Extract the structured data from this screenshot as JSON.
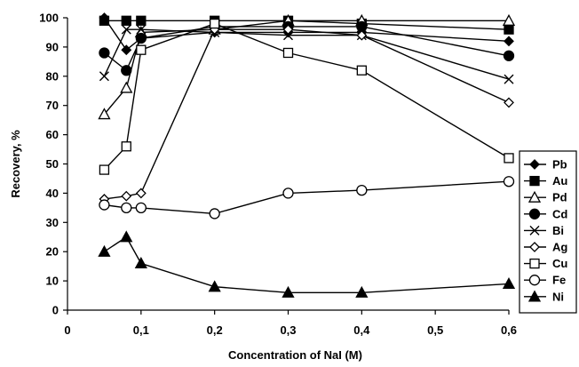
{
  "chart_data": {
    "type": "line",
    "xlabel": "Concentration of  NaI (M)",
    "ylabel": "Recovery, %",
    "xlim": [
      0,
      0.6
    ],
    "ylim": [
      0,
      100
    ],
    "x_ticks": [
      0,
      0.1,
      0.2,
      0.3,
      0.4,
      0.5,
      0.6
    ],
    "x_tick_labels": [
      "0",
      "0,1",
      "0,2",
      "0,3",
      "0,4",
      "0,5",
      "0,6"
    ],
    "y_ticks": [
      0,
      10,
      20,
      30,
      40,
      50,
      60,
      70,
      80,
      90,
      100
    ],
    "y_tick_labels": [
      "0",
      "10",
      "20",
      "30",
      "40",
      "50",
      "60",
      "70",
      "80",
      "90",
      "100"
    ],
    "grid": false,
    "legend_position": "right",
    "series": [
      {
        "name": "Pb",
        "marker": "filled-diamond",
        "points": [
          [
            0.05,
            100
          ],
          [
            0.08,
            89
          ],
          [
            0.1,
            93
          ],
          [
            0.2,
            95
          ],
          [
            0.3,
            95
          ],
          [
            0.4,
            95
          ],
          [
            0.6,
            92
          ]
        ]
      },
      {
        "name": "Au",
        "marker": "filled-square",
        "points": [
          [
            0.05,
            99
          ],
          [
            0.08,
            99
          ],
          [
            0.1,
            99
          ],
          [
            0.2,
            99
          ],
          [
            0.3,
            99
          ],
          [
            0.4,
            98
          ],
          [
            0.6,
            96
          ]
        ]
      },
      {
        "name": "Pd",
        "marker": "open-triangle",
        "points": [
          [
            0.05,
            67
          ],
          [
            0.08,
            76
          ],
          [
            0.1,
            95
          ],
          [
            0.2,
            96
          ],
          [
            0.3,
            99
          ],
          [
            0.4,
            99
          ],
          [
            0.6,
            99
          ]
        ]
      },
      {
        "name": "Cd",
        "marker": "filled-circle",
        "points": [
          [
            0.05,
            88
          ],
          [
            0.08,
            82
          ],
          [
            0.1,
            93
          ],
          [
            0.2,
            97
          ],
          [
            0.3,
            97
          ],
          [
            0.4,
            97
          ],
          [
            0.6,
            87
          ]
        ]
      },
      {
        "name": "Bi",
        "marker": "x",
        "points": [
          [
            0.05,
            80
          ],
          [
            0.08,
            96
          ],
          [
            0.1,
            96
          ],
          [
            0.2,
            95
          ],
          [
            0.3,
            94
          ],
          [
            0.4,
            94
          ],
          [
            0.6,
            79
          ]
        ]
      },
      {
        "name": "Ag",
        "marker": "open-diamond",
        "points": [
          [
            0.05,
            38
          ],
          [
            0.08,
            39
          ],
          [
            0.1,
            40
          ],
          [
            0.2,
            96
          ],
          [
            0.3,
            96
          ],
          [
            0.4,
            94
          ],
          [
            0.6,
            71
          ]
        ]
      },
      {
        "name": "Cu",
        "marker": "open-square",
        "points": [
          [
            0.05,
            48
          ],
          [
            0.08,
            56
          ],
          [
            0.1,
            89
          ],
          [
            0.2,
            98
          ],
          [
            0.3,
            88
          ],
          [
            0.4,
            82
          ],
          [
            0.6,
            52
          ]
        ]
      },
      {
        "name": "Fe",
        "marker": "open-circle",
        "points": [
          [
            0.05,
            36
          ],
          [
            0.08,
            35
          ],
          [
            0.1,
            35
          ],
          [
            0.2,
            33
          ],
          [
            0.3,
            40
          ],
          [
            0.4,
            41
          ],
          [
            0.6,
            44
          ]
        ]
      },
      {
        "name": "Ni",
        "marker": "filled-triangle",
        "points": [
          [
            0.05,
            20
          ],
          [
            0.08,
            25
          ],
          [
            0.1,
            16
          ],
          [
            0.2,
            8
          ],
          [
            0.3,
            6
          ],
          [
            0.4,
            6
          ],
          [
            0.6,
            9
          ]
        ]
      }
    ]
  }
}
